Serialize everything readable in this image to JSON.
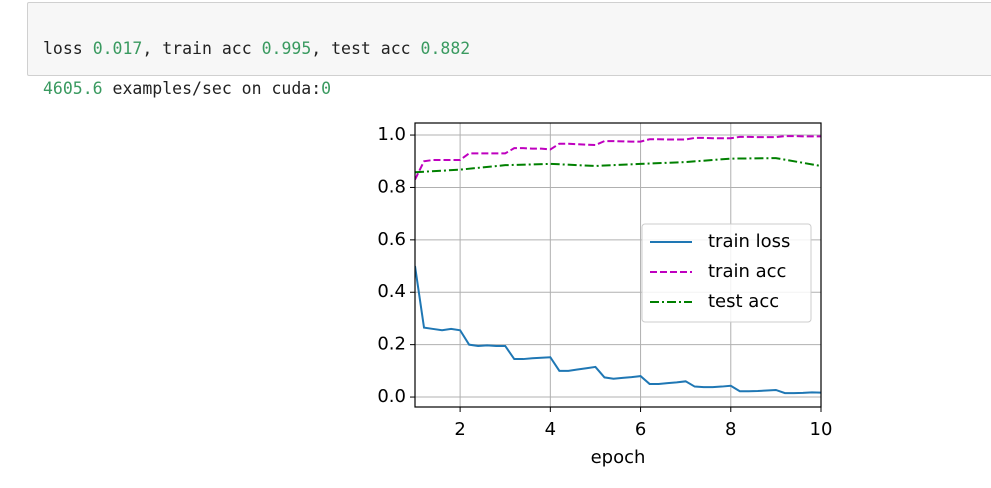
{
  "output": {
    "lines": [
      [
        {
          "text": "loss"
        },
        {
          "number": 0.017
        },
        {
          "text": ", train acc"
        },
        {
          "number": 0.995
        },
        {
          "text": ", test acc"
        },
        {
          "number": 0.882
        }
      ],
      [
        {
          "number": 4605.6
        },
        {
          "text": "examples/sec on cuda:"
        },
        {
          "number": 0
        }
      ]
    ]
  },
  "chart_data": {
    "type": "line",
    "xlabel": "epoch",
    "xlim": [
      1,
      10
    ],
    "xticks": [
      2,
      4,
      6,
      8,
      10
    ],
    "ylim": [
      -0.038,
      1.046
    ],
    "yticks": [
      {
        "value": 0,
        "label": "0.0"
      },
      0.2,
      0.4,
      0.6,
      0.8,
      {
        "value": 1,
        "label": "1.0"
      }
    ],
    "grid": true,
    "legend": "center right",
    "series": [
      {
        "name": "train loss",
        "color": "#1f77b4",
        "linestyle": "solid",
        "x": [
          1,
          1.2,
          1.4,
          1.6,
          1.8,
          2,
          2.2,
          2.4,
          2.6,
          2.8,
          3,
          3.2,
          3.4,
          3.6,
          3.8,
          4,
          4.2,
          4.4,
          4.6,
          4.8,
          5,
          5.2,
          5.4,
          5.6,
          5.8,
          6,
          6.2,
          6.4,
          6.6,
          6.8,
          7,
          7.2,
          7.4,
          7.6,
          7.8,
          8,
          8.2,
          8.4,
          8.6,
          8.8,
          9,
          9.2,
          9.4,
          9.6,
          9.8,
          10
        ],
        "values": [
          0.5,
          0.265,
          0.26,
          0.255,
          0.26,
          0.255,
          0.2,
          0.195,
          0.197,
          0.195,
          0.195,
          0.145,
          0.145,
          0.148,
          0.15,
          0.152,
          0.1,
          0.1,
          0.105,
          0.11,
          0.115,
          0.075,
          0.07,
          0.073,
          0.076,
          0.08,
          0.05,
          0.05,
          0.053,
          0.056,
          0.06,
          0.04,
          0.038,
          0.038,
          0.04,
          0.043,
          0.022,
          0.022,
          0.023,
          0.025,
          0.027,
          0.015,
          0.015,
          0.016,
          0.018,
          0.017
        ]
      },
      {
        "name": "train acc",
        "color": "#bf00bf",
        "linestyle": "dashed",
        "x": [
          1,
          1.2,
          1.4,
          1.6,
          1.8,
          2,
          2.2,
          2.4,
          2.6,
          2.8,
          3,
          3.2,
          3.4,
          3.6,
          3.8,
          4,
          4.2,
          4.4,
          4.6,
          4.8,
          5,
          5.2,
          5.4,
          5.6,
          5.8,
          6,
          6.2,
          6.4,
          6.6,
          6.8,
          7,
          7.2,
          7.4,
          7.6,
          7.8,
          8,
          8.2,
          8.4,
          8.6,
          8.8,
          9,
          9.2,
          9.4,
          9.6,
          9.8,
          10
        ],
        "values": [
          0.83,
          0.9,
          0.905,
          0.905,
          0.905,
          0.905,
          0.93,
          0.93,
          0.93,
          0.93,
          0.93,
          0.95,
          0.95,
          0.948,
          0.948,
          0.945,
          0.967,
          0.967,
          0.965,
          0.963,
          0.962,
          0.977,
          0.977,
          0.976,
          0.975,
          0.975,
          0.984,
          0.984,
          0.983,
          0.983,
          0.983,
          0.989,
          0.989,
          0.988,
          0.988,
          0.988,
          0.993,
          0.993,
          0.992,
          0.992,
          0.992,
          0.996,
          0.996,
          0.995,
          0.995,
          0.995
        ]
      },
      {
        "name": "test acc",
        "color": "#008000",
        "linestyle": "dashdot",
        "x": [
          1,
          2,
          3,
          4,
          5,
          6,
          7,
          8,
          9,
          10
        ],
        "values": [
          0.858,
          0.868,
          0.885,
          0.89,
          0.882,
          0.89,
          0.897,
          0.91,
          0.912,
          0.882
        ]
      }
    ]
  }
}
